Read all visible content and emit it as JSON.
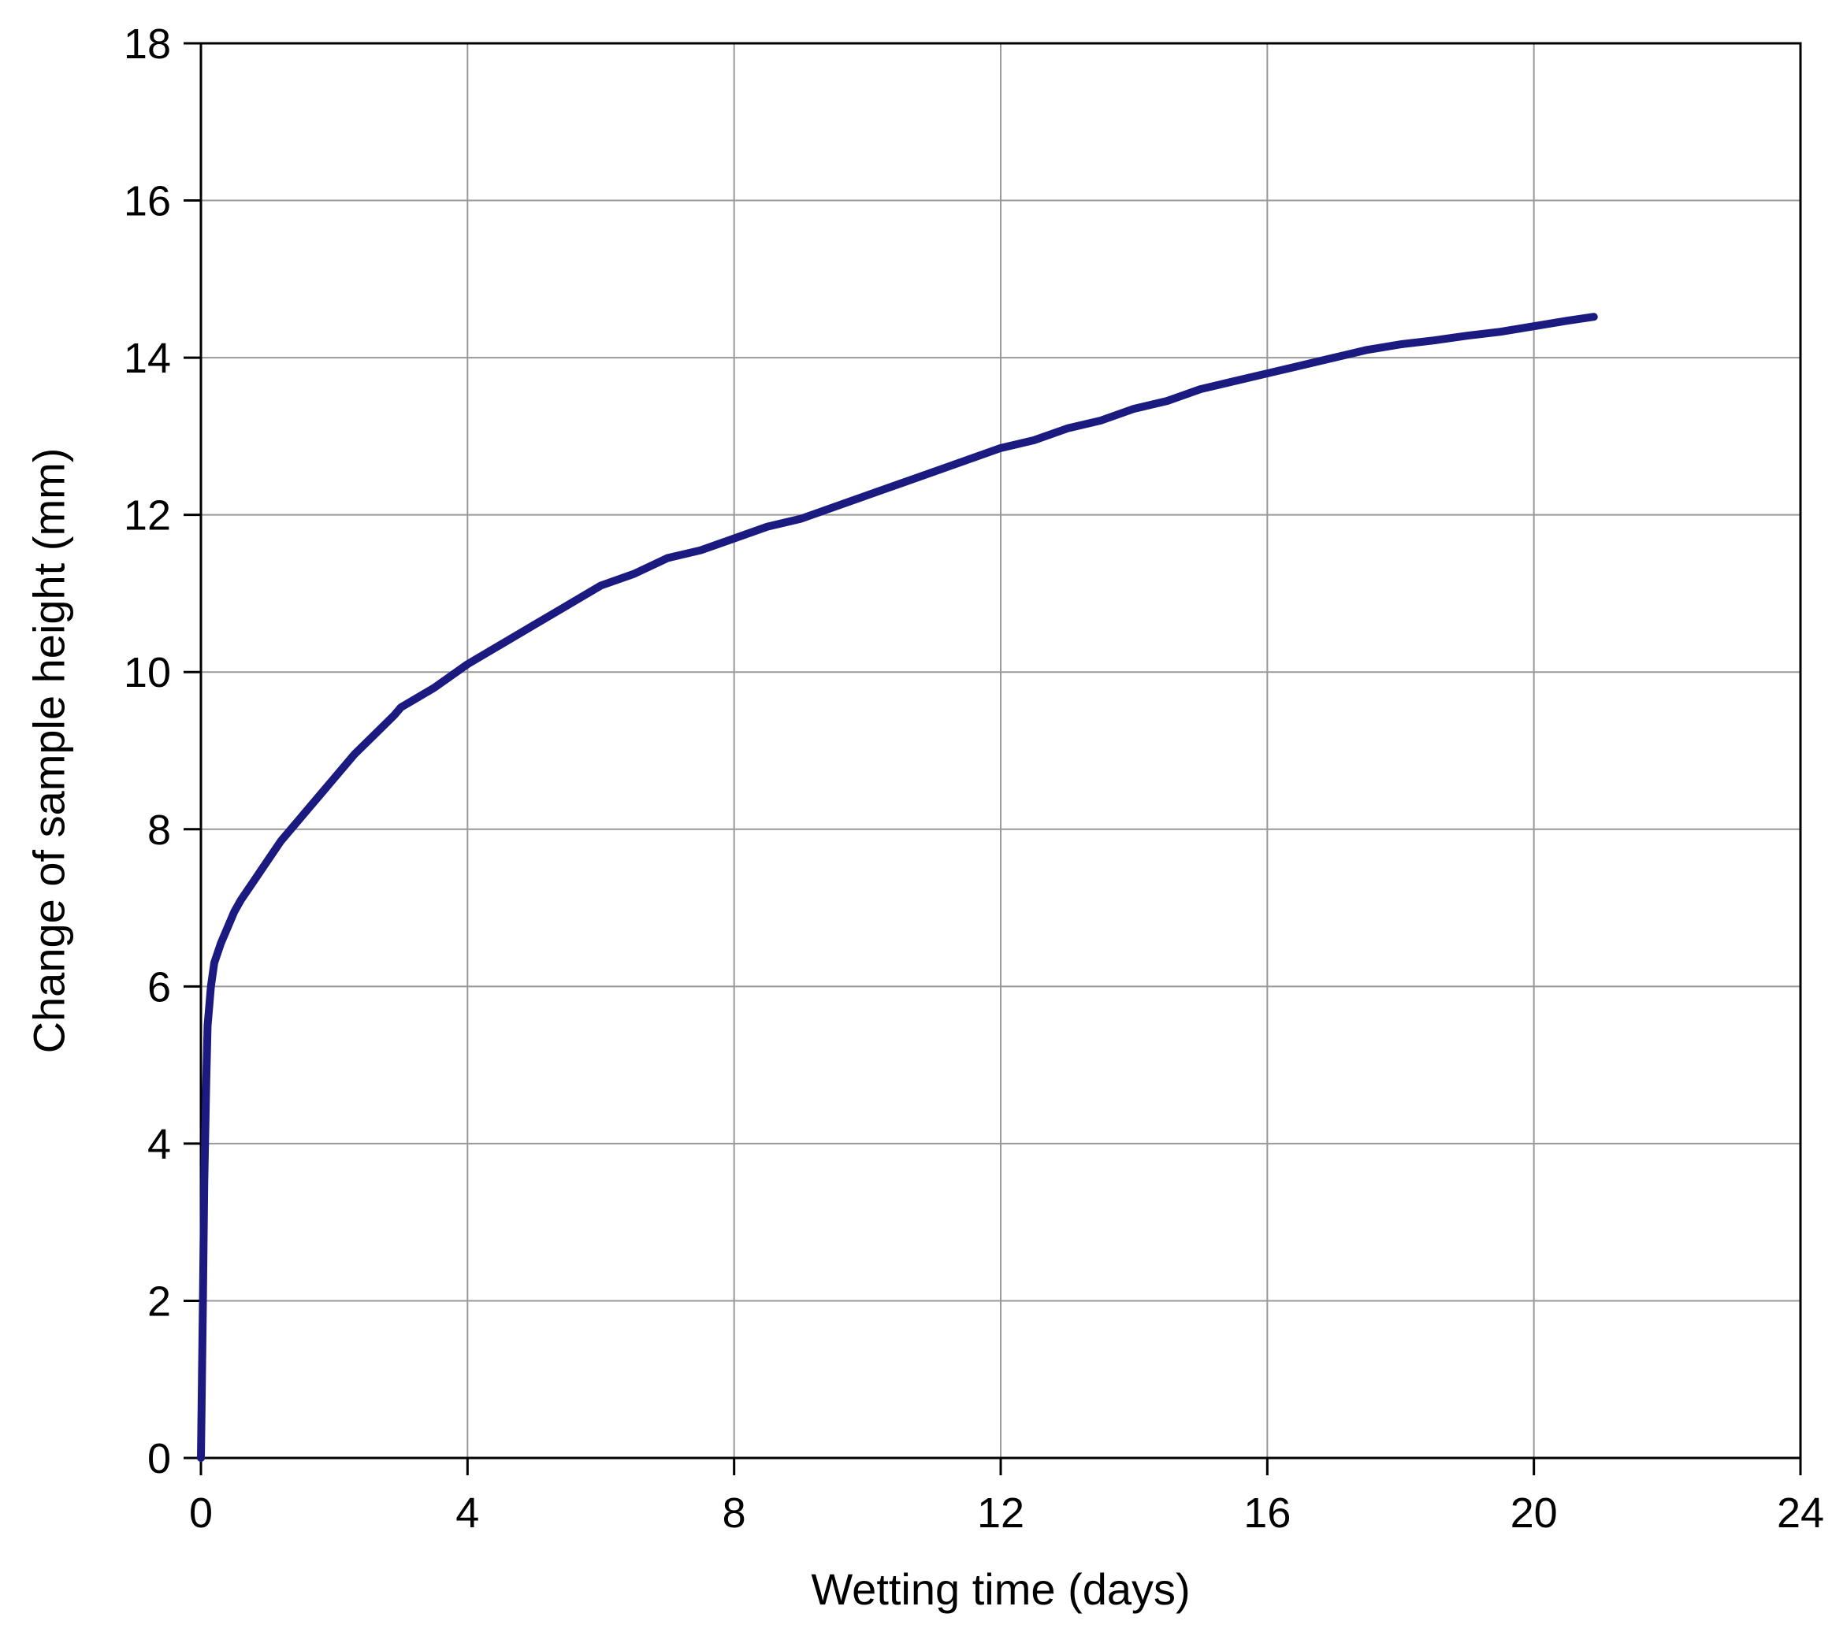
{
  "chart_data": {
    "type": "line",
    "title": "",
    "xlabel": "Wetting time (days)",
    "ylabel": "Change of sample height (mm)",
    "xlim": [
      0,
      24
    ],
    "ylim": [
      0,
      18
    ],
    "xticks": [
      0,
      4,
      8,
      12,
      16,
      20,
      24
    ],
    "yticks": [
      0,
      2,
      4,
      6,
      8,
      10,
      12,
      14,
      16,
      18
    ],
    "grid": true,
    "grid_color": "#999999",
    "border_color": "#000000",
    "line_color": "#1a1a80",
    "line_width": 10,
    "legend": "none",
    "series": [
      {
        "name": "Change of sample height",
        "points": [
          [
            0,
            0
          ],
          [
            0.03,
            2.0
          ],
          [
            0.05,
            3.5
          ],
          [
            0.08,
            4.8
          ],
          [
            0.1,
            5.5
          ],
          [
            0.15,
            6.0
          ],
          [
            0.2,
            6.3
          ],
          [
            0.3,
            6.55
          ],
          [
            0.4,
            6.75
          ],
          [
            0.5,
            6.95
          ],
          [
            0.6,
            7.1
          ],
          [
            0.8,
            7.35
          ],
          [
            1.0,
            7.6
          ],
          [
            1.2,
            7.85
          ],
          [
            1.5,
            8.15
          ],
          [
            1.8,
            8.45
          ],
          [
            2.0,
            8.65
          ],
          [
            2.3,
            8.95
          ],
          [
            2.6,
            9.2
          ],
          [
            2.9,
            9.45
          ],
          [
            3.0,
            9.55
          ],
          [
            3.5,
            9.8
          ],
          [
            4.0,
            10.1
          ],
          [
            4.5,
            10.35
          ],
          [
            5.0,
            10.6
          ],
          [
            5.5,
            10.85
          ],
          [
            6.0,
            11.1
          ],
          [
            6.5,
            11.25
          ],
          [
            7.0,
            11.45
          ],
          [
            7.5,
            11.55
          ],
          [
            8.0,
            11.7
          ],
          [
            8.5,
            11.85
          ],
          [
            9.0,
            11.95
          ],
          [
            9.5,
            12.1
          ],
          [
            10.0,
            12.25
          ],
          [
            10.5,
            12.4
          ],
          [
            11.0,
            12.55
          ],
          [
            11.5,
            12.7
          ],
          [
            12.0,
            12.85
          ],
          [
            12.5,
            12.95
          ],
          [
            13.0,
            13.1
          ],
          [
            13.5,
            13.2
          ],
          [
            14.0,
            13.35
          ],
          [
            14.5,
            13.45
          ],
          [
            15.0,
            13.6
          ],
          [
            15.5,
            13.7
          ],
          [
            16.0,
            13.8
          ],
          [
            16.5,
            13.9
          ],
          [
            17.0,
            14.0
          ],
          [
            17.5,
            14.1
          ],
          [
            18.0,
            14.17
          ],
          [
            18.5,
            14.22
          ],
          [
            19.0,
            14.28
          ],
          [
            19.5,
            14.33
          ],
          [
            20.0,
            14.4
          ],
          [
            20.5,
            14.47
          ],
          [
            20.9,
            14.52
          ]
        ]
      }
    ]
  }
}
